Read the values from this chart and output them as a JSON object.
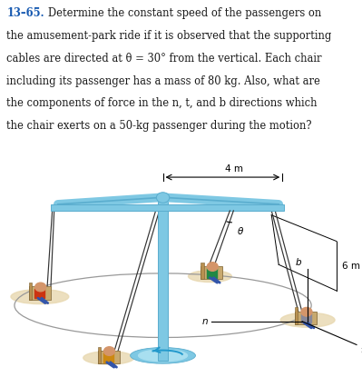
{
  "problem_number": "13–65.",
  "text_rest": "   Determine the constant speed of the passengers on",
  "line2": "the amusement-park ride if it is observed that the supporting",
  "line3": "cables are directed at θ = 30° from the vertical. Each chair",
  "line4": "including its passenger has a mass of 80 kg. Also, what are",
  "line5": "the components of force in the n, t, and b directions which",
  "line6": "the chair exerts on a 50-kg passenger during the motion?",
  "label_4m": "4 m",
  "label_6m": "6 m",
  "label_b": "b",
  "label_n": "n",
  "label_t": "t",
  "label_theta": "θ",
  "bg_color": "#ffffff",
  "text_color": "#1a1a1a",
  "problem_color": "#1558b0",
  "arm_color": "#7ec8e3",
  "arm_shade": "#5aadce",
  "cable_color": "#333333",
  "pole_color": "#7ec8e3",
  "chair_color": "#c8a96e",
  "base_color": "#7ec8e3",
  "shadow_color": "#e8d8b0"
}
